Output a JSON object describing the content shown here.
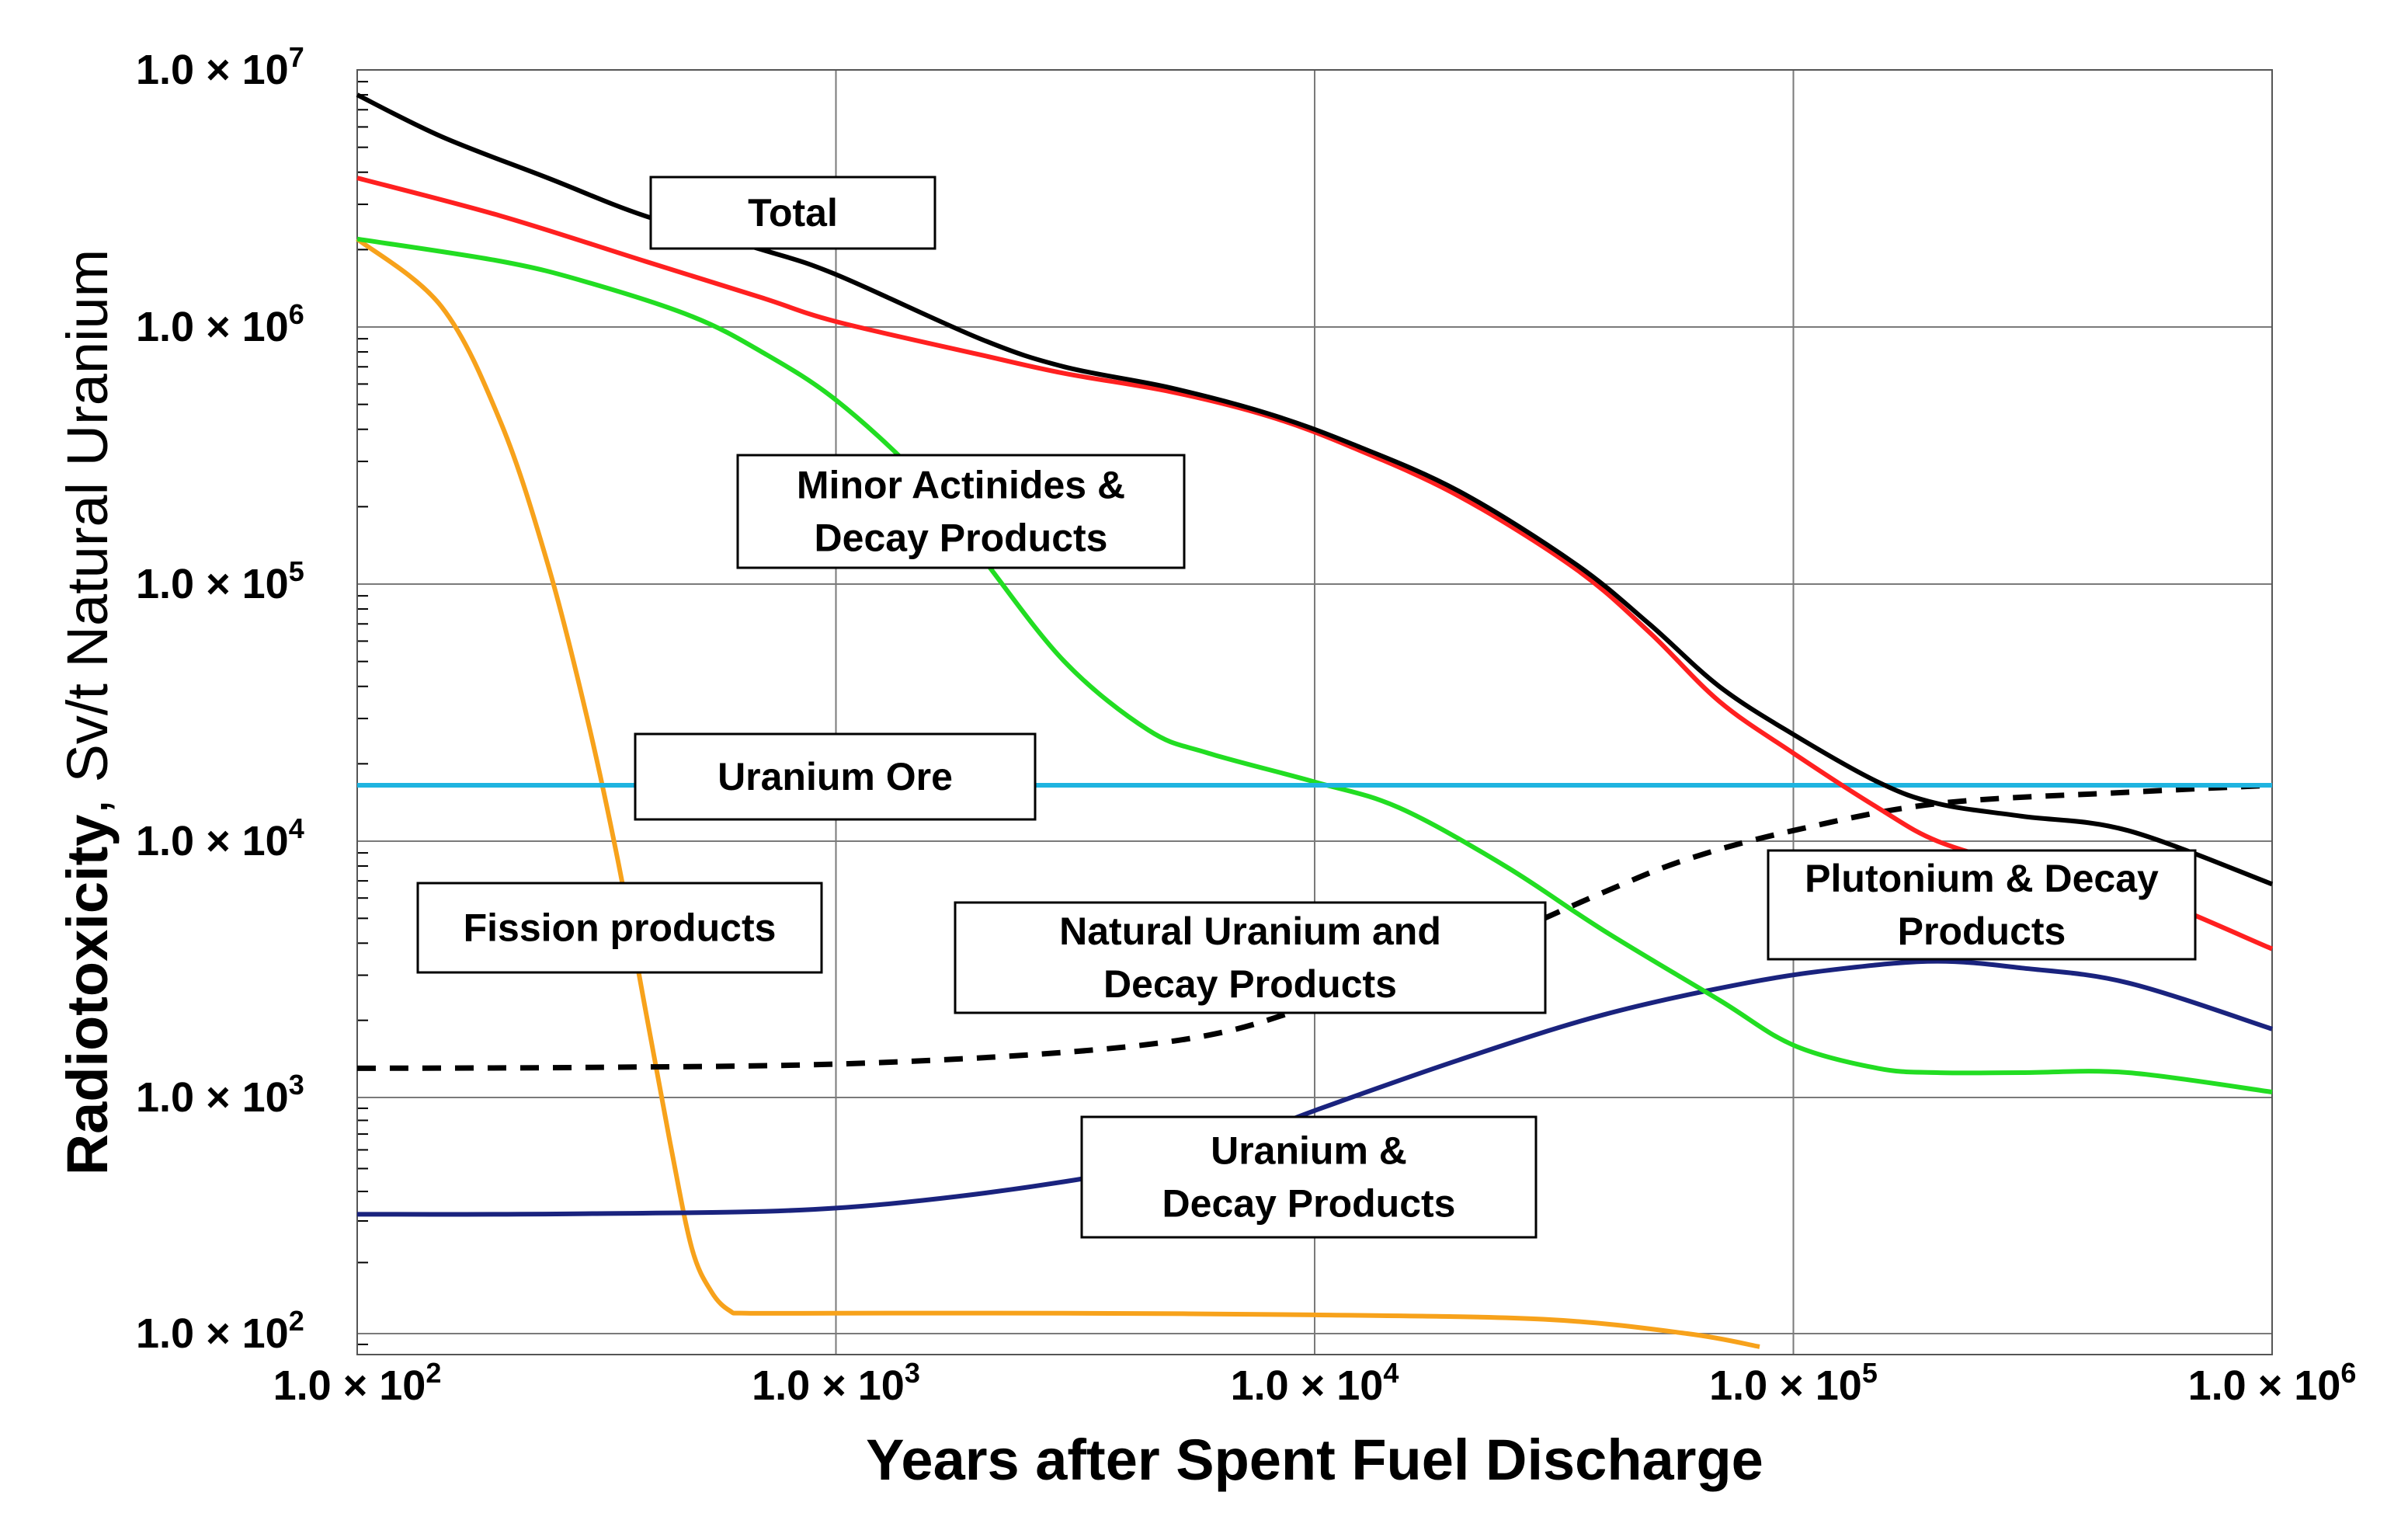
{
  "chart_data": {
    "type": "line",
    "xscale": "log",
    "yscale": "log",
    "xlim": [
      100,
      1000000
    ],
    "ylim": [
      80,
      10000000
    ],
    "x_ticks": [
      {
        "value": 100,
        "base": "1.0 × 10",
        "exp": "2"
      },
      {
        "value": 1000,
        "base": "1.0 × 10",
        "exp": "3"
      },
      {
        "value": 10000,
        "base": "1.0 × 10",
        "exp": "4"
      },
      {
        "value": 100000,
        "base": "1.0 × 10",
        "exp": "5"
      },
      {
        "value": 1000000,
        "base": "1.0 × 10",
        "exp": "6"
      }
    ],
    "y_ticks": [
      {
        "value": 100,
        "base": "1.0 × 10",
        "exp": "2"
      },
      {
        "value": 1000,
        "base": "1.0 × 10",
        "exp": "3"
      },
      {
        "value": 10000,
        "base": "1.0 × 10",
        "exp": "4"
      },
      {
        "value": 100000,
        "base": "1.0 × 10",
        "exp": "5"
      },
      {
        "value": 1000000,
        "base": "1.0 × 10",
        "exp": "6"
      },
      {
        "value": 10000000,
        "base": "1.0 × 10",
        "exp": "7"
      }
    ],
    "xlabel": "Years after Spent Fuel Discharge",
    "ylabel_bold": "Radiotoxicity",
    "ylabel_rest": ", Sv/t Natural Uranium",
    "grid": true,
    "series": [
      {
        "name": "Total",
        "color": "#000000",
        "style": "solid",
        "x": [
          100,
          150,
          250,
          400,
          700,
          1000,
          2000,
          3000,
          5000,
          8000,
          12000,
          20000,
          35000,
          50000,
          70000,
          100000,
          150000,
          200000,
          300000,
          500000,
          1000000
        ],
        "y": [
          8000000,
          5500000,
          3800000,
          2700000,
          2000000,
          1600000,
          900000,
          700000,
          580000,
          460000,
          350000,
          230000,
          120000,
          70000,
          40000,
          26000,
          17000,
          14000,
          12500,
          11000,
          6800
        ]
      },
      {
        "name": "Plutonium & Decay Products",
        "color": "#ff2020",
        "style": "solid",
        "x": [
          100,
          200,
          400,
          700,
          1000,
          2000,
          3000,
          5000,
          8000,
          12000,
          20000,
          35000,
          50000,
          70000,
          100000,
          150000,
          200000,
          300000,
          500000,
          1000000
        ],
        "y": [
          3800000,
          2700000,
          1800000,
          1300000,
          1050000,
          780000,
          660000,
          560000,
          450000,
          340000,
          220000,
          115000,
          65000,
          35000,
          22000,
          13500,
          10000,
          8000,
          6500,
          3800
        ]
      },
      {
        "name": "Minor Actinides & Decay Products",
        "color": "#22dd22",
        "style": "solid",
        "x": [
          100,
          200,
          300,
          500,
          700,
          1000,
          1500,
          2000,
          3000,
          4500,
          6000,
          10000,
          15000,
          25000,
          40000,
          70000,
          100000,
          150000,
          200000,
          300000,
          500000,
          1000000
        ],
        "y": [
          2200000,
          1800000,
          1500000,
          1100000,
          800000,
          520000,
          260000,
          130000,
          50000,
          27000,
          22000,
          17000,
          13500,
          8000,
          4500,
          2400,
          1600,
          1300,
          1250,
          1250,
          1250,
          1050
        ]
      },
      {
        "name": "Fission products",
        "color": "#f7a21b",
        "style": "solid",
        "x": [
          100,
          150,
          200,
          250,
          300,
          350,
          400,
          450,
          500,
          550,
          600,
          650,
          1000,
          3000,
          10000,
          30000,
          60000,
          85000
        ],
        "y": [
          2200000,
          1200000,
          420000,
          120000,
          32000,
          8500,
          2200,
          650,
          230,
          150,
          125,
          122,
          122,
          122,
          120,
          115,
          100,
          88
        ]
      },
      {
        "name": "Uranium Ore",
        "color": "#1fb4e0",
        "style": "solid",
        "x": [
          100,
          1000000
        ],
        "y": [
          16500,
          16500
        ]
      },
      {
        "name": "Natural Uranium and Decay Products",
        "color": "#000000",
        "style": "dashed",
        "x": [
          100,
          300,
          1000,
          3000,
          6000,
          10000,
          20000,
          40000,
          60000,
          100000,
          200000,
          500000,
          1000000
        ],
        "y": [
          1300,
          1310,
          1350,
          1500,
          1750,
          2300,
          3600,
          6300,
          8500,
          11000,
          14000,
          15500,
          16500
        ]
      },
      {
        "name": "Uranium & Decay Products",
        "color": "#1a237e",
        "style": "solid",
        "x": [
          100,
          300,
          1000,
          3000,
          6000,
          10000,
          20000,
          40000,
          80000,
          130000,
          200000,
          300000,
          500000,
          1000000
        ],
        "y": [
          320,
          322,
          340,
          440,
          600,
          880,
          1400,
          2100,
          2800,
          3200,
          3400,
          3200,
          2800,
          1850
        ]
      }
    ],
    "annotations": [
      {
        "id": "total",
        "lines": [
          "Total"
        ]
      },
      {
        "id": "minor",
        "lines": [
          "Minor Actinides &",
          "Decay Products"
        ]
      },
      {
        "id": "ore",
        "lines": [
          "Uranium Ore"
        ]
      },
      {
        "id": "fission",
        "lines": [
          "Fission products"
        ]
      },
      {
        "id": "natural",
        "lines": [
          "Natural Uranium and",
          "Decay Products"
        ]
      },
      {
        "id": "plutonium",
        "lines": [
          "Plutonium & Decay",
          "Products"
        ]
      },
      {
        "id": "uranium",
        "lines": [
          "Uranium &",
          "Decay Products"
        ]
      }
    ]
  }
}
